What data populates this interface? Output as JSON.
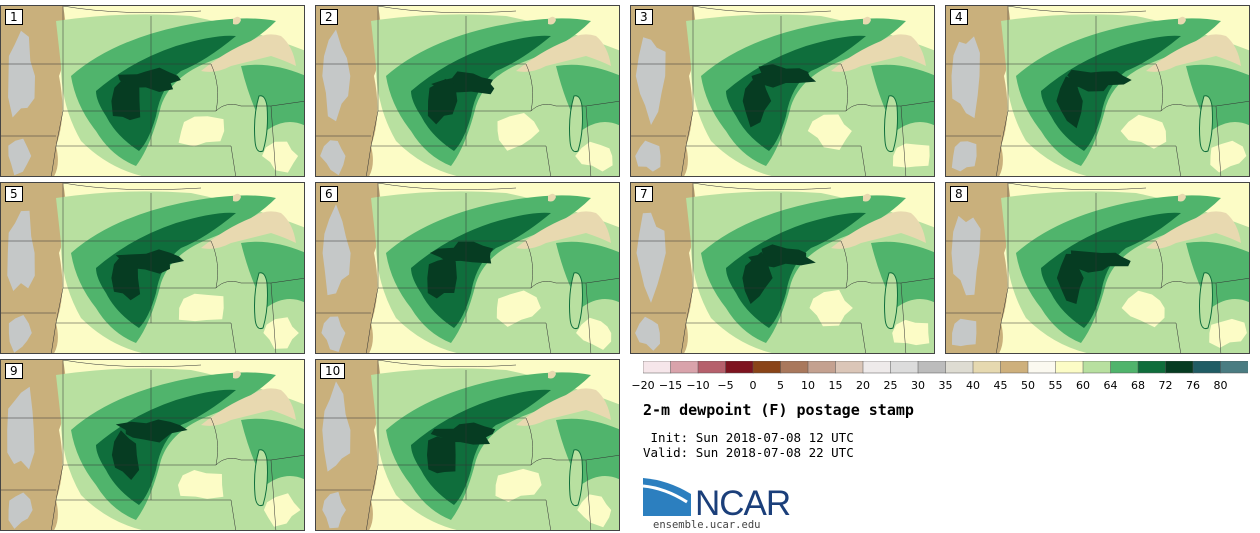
{
  "title": "2-m dewpoint (F) postage stamp",
  "init_label": " Init:",
  "init_value": "Sun 2018-07-08 12 UTC",
  "valid_label": "Valid:",
  "valid_value": "Sun 2018-07-08 22 UTC",
  "logo_text": "NCAR",
  "site": "ensemble.ucar.edu",
  "members": [
    "1",
    "2",
    "3",
    "4",
    "5",
    "6",
    "7",
    "8",
    "9",
    "10"
  ],
  "colorbar": {
    "labels": [
      "−20",
      "−15",
      "−10",
      "−5",
      "0",
      "5",
      "10",
      "15",
      "20",
      "25",
      "30",
      "35",
      "40",
      "45",
      "50",
      "55",
      "60",
      "64",
      "68",
      "72",
      "76",
      "80"
    ],
    "colors": [
      "#f6e6ea",
      "#d9a3ab",
      "#b6606c",
      "#7e1420",
      "#8a4418",
      "#a9785c",
      "#c4a190",
      "#dbc6b8",
      "#eeeaea",
      "#dcdcdc",
      "#bcbcbc",
      "#dedcd2",
      "#e6d9b0",
      "#ceb07c",
      "#fbf9f0",
      "#fcfcc6",
      "#b8e0a0",
      "#50b46c",
      "#0f6e3c",
      "#063c22",
      "#205c64",
      "#4a7c82"
    ]
  },
  "map_colors": {
    "dry": "#c9b07c",
    "gray": "#c5c8c8",
    "tan_light": "#e8d9b0",
    "cream": "#fcfcc6",
    "light_green": "#b8e0a0",
    "green": "#50b46c",
    "dark_green": "#0f6e3c",
    "darkest_green": "#063c22",
    "border": "#333333"
  }
}
